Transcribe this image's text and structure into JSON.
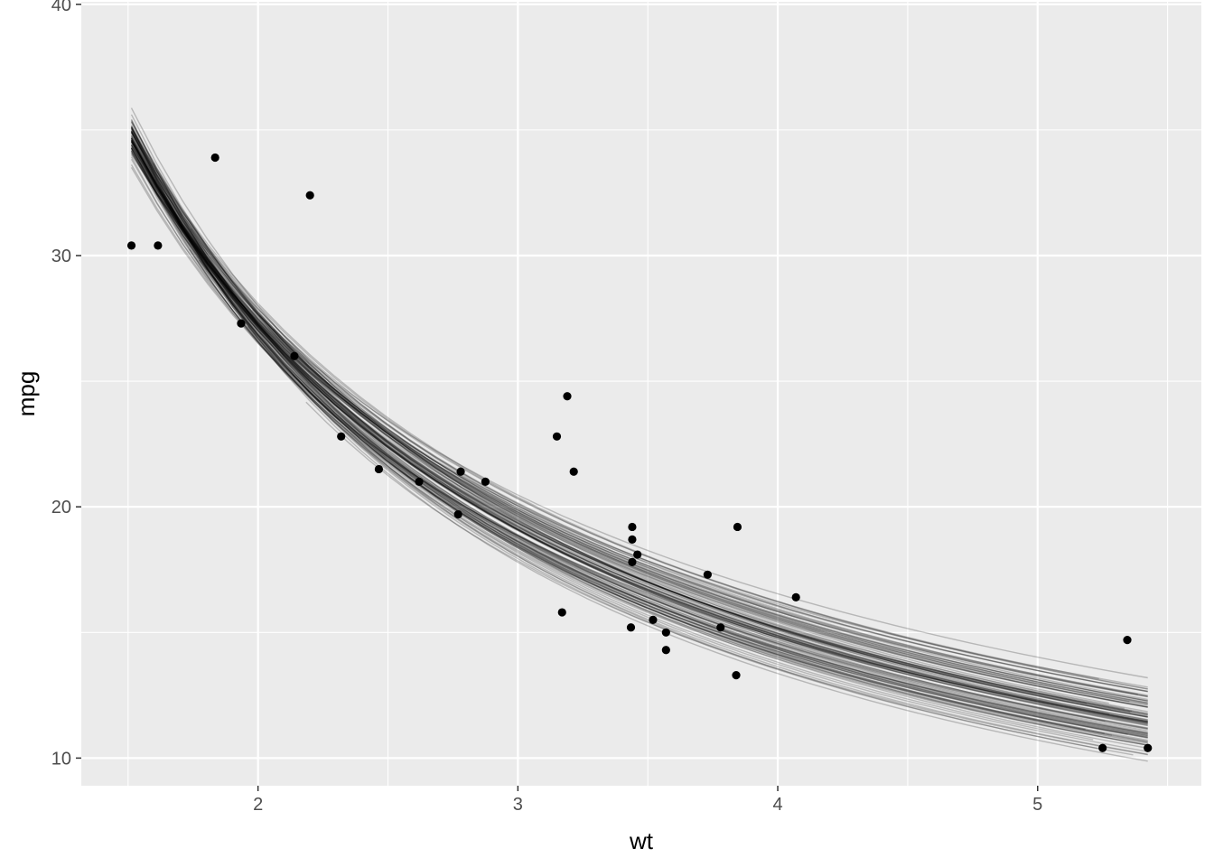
{
  "chart_data": {
    "type": "scatter",
    "title": "",
    "xlabel": "wt",
    "ylabel": "mpg",
    "xlim": [
      1.32,
      5.63
    ],
    "ylim": [
      8.9,
      40.1
    ],
    "x_ticks": [
      2,
      3,
      4,
      5
    ],
    "y_ticks": [
      10,
      20,
      30,
      40
    ],
    "grid": true,
    "legend": "none",
    "colors": {
      "panel_background": "#ebebeb",
      "gridline": "#ffffff",
      "point": "#000000",
      "curve": "#000000"
    },
    "points": [
      {
        "x": 2.62,
        "y": 21.0
      },
      {
        "x": 2.875,
        "y": 21.0
      },
      {
        "x": 2.32,
        "y": 22.8
      },
      {
        "x": 3.215,
        "y": 21.4
      },
      {
        "x": 3.44,
        "y": 18.7
      },
      {
        "x": 3.46,
        "y": 18.1
      },
      {
        "x": 3.57,
        "y": 14.3
      },
      {
        "x": 3.19,
        "y": 24.4
      },
      {
        "x": 3.15,
        "y": 22.8
      },
      {
        "x": 3.44,
        "y": 19.2
      },
      {
        "x": 3.44,
        "y": 17.8
      },
      {
        "x": 4.07,
        "y": 16.4
      },
      {
        "x": 3.73,
        "y": 17.3
      },
      {
        "x": 3.78,
        "y": 15.2
      },
      {
        "x": 5.25,
        "y": 10.4
      },
      {
        "x": 5.424,
        "y": 10.4
      },
      {
        "x": 5.345,
        "y": 14.7
      },
      {
        "x": 2.2,
        "y": 32.4
      },
      {
        "x": 1.615,
        "y": 30.4
      },
      {
        "x": 1.835,
        "y": 33.9
      },
      {
        "x": 2.465,
        "y": 21.5
      },
      {
        "x": 3.52,
        "y": 15.5
      },
      {
        "x": 3.435,
        "y": 15.2
      },
      {
        "x": 3.84,
        "y": 13.3
      },
      {
        "x": 3.845,
        "y": 19.2
      },
      {
        "x": 1.935,
        "y": 27.3
      },
      {
        "x": 2.14,
        "y": 26.0
      },
      {
        "x": 1.513,
        "y": 30.4
      },
      {
        "x": 3.17,
        "y": 15.8
      },
      {
        "x": 2.77,
        "y": 19.7
      },
      {
        "x": 3.57,
        "y": 15.0
      },
      {
        "x": 2.78,
        "y": 21.4
      }
    ],
    "curve_model": "mpg = a * wt^b",
    "curve_count": 100,
    "curve_fit": {
      "a": 49.4,
      "b": -0.86
    },
    "curve_spread": {
      "a_sd": 1.6,
      "b_sd": 0.055,
      "ab_correlation": -0.92
    }
  }
}
